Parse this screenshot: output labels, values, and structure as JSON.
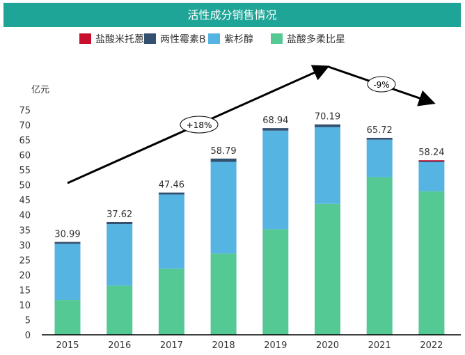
{
  "chart_data": {
    "type": "bar",
    "stacked": true,
    "title": "活性成分销售情况",
    "ylabel": "亿元",
    "xlabel": "",
    "ylim": [
      0,
      75
    ],
    "yticks": [
      0,
      5,
      10,
      15,
      20,
      25,
      30,
      35,
      40,
      45,
      50,
      55,
      60,
      65,
      70,
      75
    ],
    "categories": [
      "2015",
      "2016",
      "2017",
      "2018",
      "2019",
      "2020",
      "2021",
      "2022"
    ],
    "series": [
      {
        "name": "盐酸多柔比星",
        "color": "#55c994",
        "values": [
          11.6,
          16.4,
          22.1,
          27.1,
          35.2,
          43.7,
          52.6,
          47.9
        ]
      },
      {
        "name": "紫杉醇",
        "color": "#56b4e3",
        "values": [
          18.75,
          20.5,
          24.7,
          30.6,
          32.9,
          25.6,
          12.5,
          9.7
        ]
      },
      {
        "name": "两性霉素B",
        "color": "#34506f",
        "values": [
          0.64,
          0.72,
          0.66,
          1.09,
          0.84,
          0.89,
          0.62,
          0.32
        ]
      },
      {
        "name": "盐酸米托蒽醌",
        "color": "#c8102e",
        "values": [
          0,
          0,
          0,
          0,
          0,
          0,
          0,
          0.32
        ]
      }
    ],
    "legend_order": [
      "盐酸米托蒽醌",
      "两性霉素B",
      "紫杉醇",
      "盐酸多柔比星"
    ],
    "totals": [
      "30.99",
      "37.62",
      "47.46",
      "58.79",
      "68.94",
      "70.19",
      "65.72",
      "58.24"
    ],
    "annotations": {
      "growth_up": "+18%",
      "growth_down": "-9%"
    },
    "legend_position": "top",
    "grid": false
  }
}
